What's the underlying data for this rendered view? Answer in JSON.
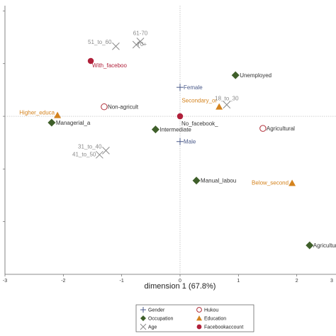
{
  "chart_data": {
    "type": "scatter",
    "xlabel": "dimension 1 (67.8%)",
    "ylabel": "",
    "xlim": [
      -3,
      3
    ],
    "ylim": [
      -3.0,
      2.1
    ],
    "xticks": [
      "-3",
      "-2",
      "-1",
      "0",
      "1",
      "2",
      "3"
    ],
    "reference_lines": {
      "x": 0,
      "y": 0,
      "style": "dotted"
    },
    "colors": {
      "Gender": "#4a5a8a",
      "Occupation": "#3f5f2a",
      "Education": "#d4831e",
      "Age": "#8a8a8a",
      "Hukou": "#b0303a",
      "Facebookaccount": "#b0203a",
      "label_default": "#333333"
    },
    "series": [
      {
        "name": "Gender",
        "marker": "plus",
        "points": [
          {
            "label": "Female",
            "x": 0.0,
            "y": 0.55
          },
          {
            "label": "Male",
            "x": 0.0,
            "y": -0.48
          }
        ]
      },
      {
        "name": "Occupation",
        "marker": "diamond",
        "points": [
          {
            "label": "Unemployed",
            "x": 0.95,
            "y": 0.78
          },
          {
            "label": "Managerial_a",
            "x": -2.2,
            "y": -0.12
          },
          {
            "label": "Intermediate",
            "x": -0.42,
            "y": -0.25
          },
          {
            "label": "Manual_labou",
            "x": 0.28,
            "y": -1.22
          },
          {
            "label": "Agricultura",
            "x": 2.22,
            "y": -2.45
          }
        ]
      },
      {
        "name": "Education",
        "marker": "triangle",
        "points": [
          {
            "label": "Higher_educa",
            "x": -2.1,
            "y": 0.02
          },
          {
            "label": "Secondary_or",
            "x": 0.67,
            "y": 0.18
          },
          {
            "label": "Below_second",
            "x": 1.92,
            "y": -1.27
          }
        ]
      },
      {
        "name": "Age",
        "marker": "x",
        "points": [
          {
            "label": "51_to_60",
            "x": -1.1,
            "y": 1.33
          },
          {
            "label": "61-70",
            "x": -0.68,
            "y": 1.42
          },
          {
            "label": "70+",
            "x": -0.75,
            "y": 1.36
          },
          {
            "label": "18_to_30",
            "x": 0.8,
            "y": 0.22
          },
          {
            "label": "31_to_40",
            "x": -1.27,
            "y": -0.65
          },
          {
            "label": "41_to_50",
            "x": -1.38,
            "y": -0.73
          }
        ]
      },
      {
        "name": "Hukou",
        "marker": "circle-open",
        "points": [
          {
            "label": "Non-agricult",
            "x": -1.3,
            "y": 0.18
          },
          {
            "label": "Agricultural",
            "x": 1.42,
            "y": -0.23
          }
        ]
      },
      {
        "name": "Facebookaccount",
        "marker": "circle-filled",
        "points": [
          {
            "label": "With_faceboo",
            "x": -1.53,
            "y": 1.05
          },
          {
            "label": "No_facebook_",
            "x": 0.0,
            "y": 0.0
          }
        ]
      }
    ],
    "legend": {
      "placement": "bottom-center",
      "entries": [
        {
          "name": "Gender",
          "marker": "plus"
        },
        {
          "name": "Hukou",
          "marker": "circle-open"
        },
        {
          "name": "Occupation",
          "marker": "diamond"
        },
        {
          "name": "Education",
          "marker": "triangle"
        },
        {
          "name": "Age",
          "marker": "x"
        },
        {
          "name": "Facebookaccount",
          "marker": "circle-filled"
        }
      ]
    }
  }
}
